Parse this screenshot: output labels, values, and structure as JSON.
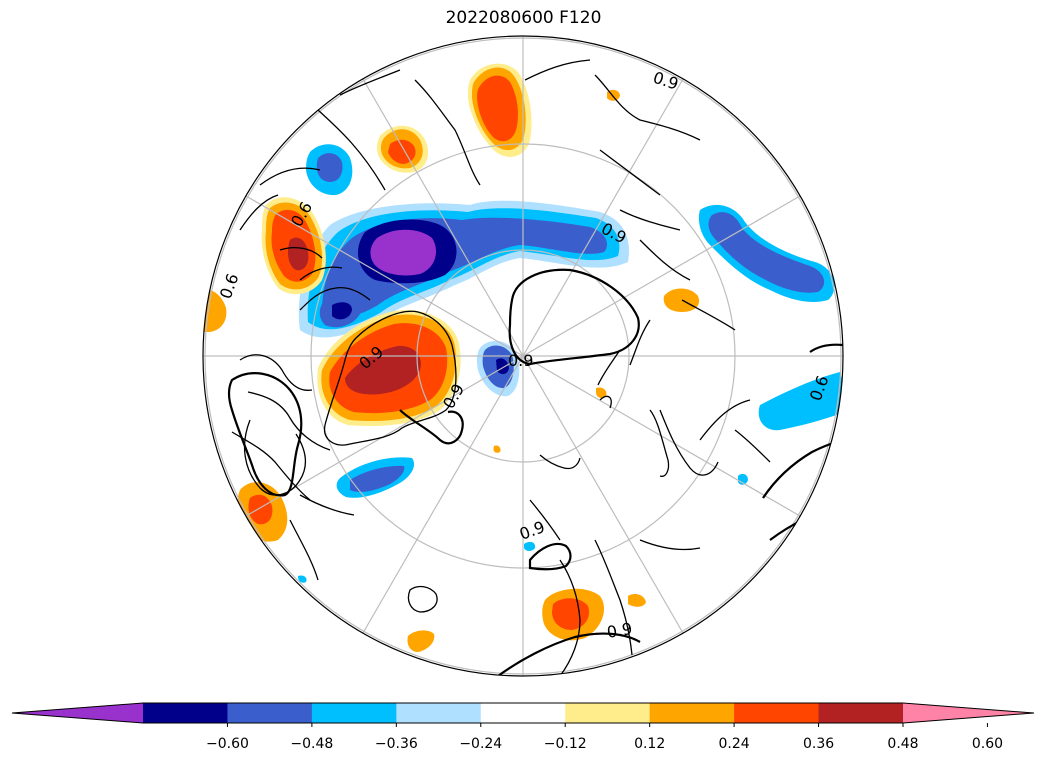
{
  "title": "2022080600 F120",
  "contour_labels": [
    "0.9",
    "0.9",
    "0.6",
    "0.6",
    "0.9",
    "0.9",
    "0.6",
    "0.9",
    "0.9",
    "0.9"
  ],
  "colorbar": {
    "ticks": [
      "−0.60",
      "−0.48",
      "−0.36",
      "−0.24",
      "−0.12",
      "0.12",
      "0.24",
      "0.36",
      "0.48",
      "0.60"
    ],
    "colors": [
      "#9932cc",
      "#00008b",
      "#3a5fcd",
      "#00bfff",
      "#b0e0ff",
      "#ffffff",
      "#ffec8b",
      "#ffa500",
      "#ff4500",
      "#b22222",
      "#ff83a7"
    ]
  },
  "colors": {
    "neg_060": "#9932cc",
    "neg_048": "#00008b",
    "neg_036": "#3a5fcd",
    "neg_024": "#00bfff",
    "neg_012": "#b0e0ff",
    "pos_012": "#ffec8b",
    "pos_024": "#ffa500",
    "pos_036": "#ff4500",
    "pos_048": "#b22222",
    "pos_060": "#ff83a7",
    "grid": "#bdbdbd",
    "coast": "#000000"
  }
}
